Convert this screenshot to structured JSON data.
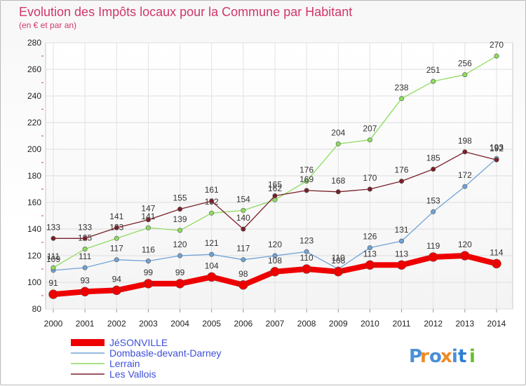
{
  "chart_data": {
    "type": "line",
    "title": "Evolution des Impôts locaux pour la Commune par Habitant",
    "subtitle": "(en € et par an)",
    "x": [
      "2000",
      "2001",
      "2002",
      "2003",
      "2004",
      "2005",
      "2006",
      "2007",
      "2008",
      "2009",
      "2010",
      "2011",
      "2012",
      "2013",
      "2014"
    ],
    "ylim": [
      80,
      280
    ],
    "yticks": [
      80,
      100,
      120,
      140,
      160,
      180,
      200,
      220,
      240,
      260,
      280
    ],
    "grid": true,
    "legend_position": "bottom-left",
    "series": [
      {
        "name": "JéSONVILLE",
        "color": "#ee0000",
        "values": [
          91,
          93,
          94,
          99,
          99,
          104,
          98,
          108,
          110,
          108,
          113,
          113,
          119,
          120,
          114
        ],
        "emphasis": true
      },
      {
        "name": "Dombasle-devant-Darney",
        "color": "#6fa2d6",
        "values": [
          109,
          111,
          117,
          116,
          120,
          121,
          117,
          120,
          123,
          110,
          126,
          131,
          153,
          172,
          193
        ]
      },
      {
        "name": "Lerrain",
        "color": "#8ddc5e",
        "values": [
          111,
          125,
          133,
          141,
          139,
          152,
          154,
          162,
          176,
          204,
          207,
          238,
          251,
          256,
          270
        ]
      },
      {
        "name": "Les Vallois",
        "color": "#7a1f2a",
        "values": [
          133,
          133,
          141,
          147,
          155,
          161,
          140,
          165,
          169,
          168,
          170,
          176,
          185,
          198,
          192
        ]
      }
    ]
  },
  "watermark": "Proxiti"
}
